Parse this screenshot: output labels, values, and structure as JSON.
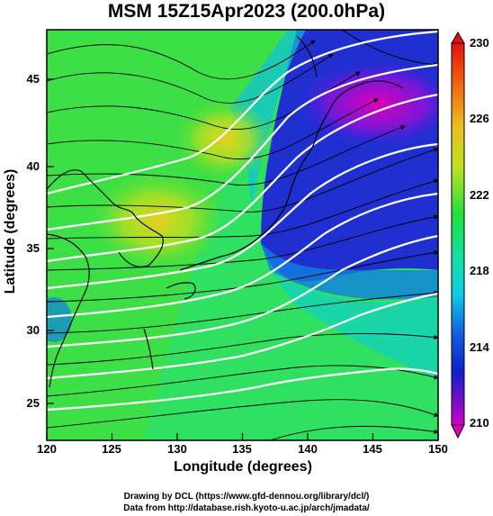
{
  "title": "MSM 15Z15Apr2023 (200.0hPa)",
  "xlabel": "Longitude (degrees)",
  "ylabel": "Latitude  (degrees)",
  "x_ticks": [
    "120",
    "125",
    "130",
    "135",
    "140",
    "145",
    "150"
  ],
  "y_ticks": [
    "45",
    "40",
    "35",
    "30",
    "25"
  ],
  "colorbar_ticks": [
    "230",
    "226",
    "222",
    "218",
    "214",
    "210"
  ],
  "credit_line1": "Drawing by DCL (https://www.gfd-dennou.org/library/dcl/)",
  "credit_line2": "Data from http://database.rish.kyoto-u.ac.jp/arch/jmadata/",
  "colors": {
    "magenta": "#d000c8",
    "blue": "#1020d0",
    "cyan": "#10d8d0",
    "green": "#20e040",
    "yellow": "#e8e020",
    "orange": "#f07010",
    "red": "#e81010"
  },
  "chart_data": {
    "type": "heatmap",
    "field": "temperature shaded with wind streamlines and white height contours",
    "x_range": [
      120,
      150
    ],
    "y_range": [
      23,
      48
    ],
    "colorbar_range": [
      210,
      230
    ]
  }
}
